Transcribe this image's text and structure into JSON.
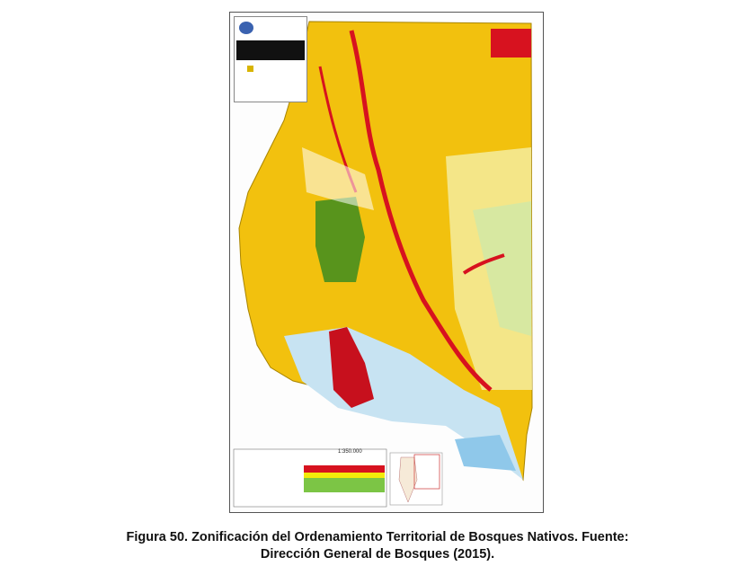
{
  "figure": {
    "map_scale": "1:350.000",
    "colors": {
      "category_I": "#d7121f",
      "category_II": "#f4c20d",
      "category_III": "#3d8c1e",
      "water": "#bfe0f0"
    }
  },
  "caption": {
    "line1": "Figura 50. Zonificación del Ordenamiento Territorial de Bosques Nativos. Fuente:",
    "line2": "Dirección General de Bosques (2015)."
  }
}
